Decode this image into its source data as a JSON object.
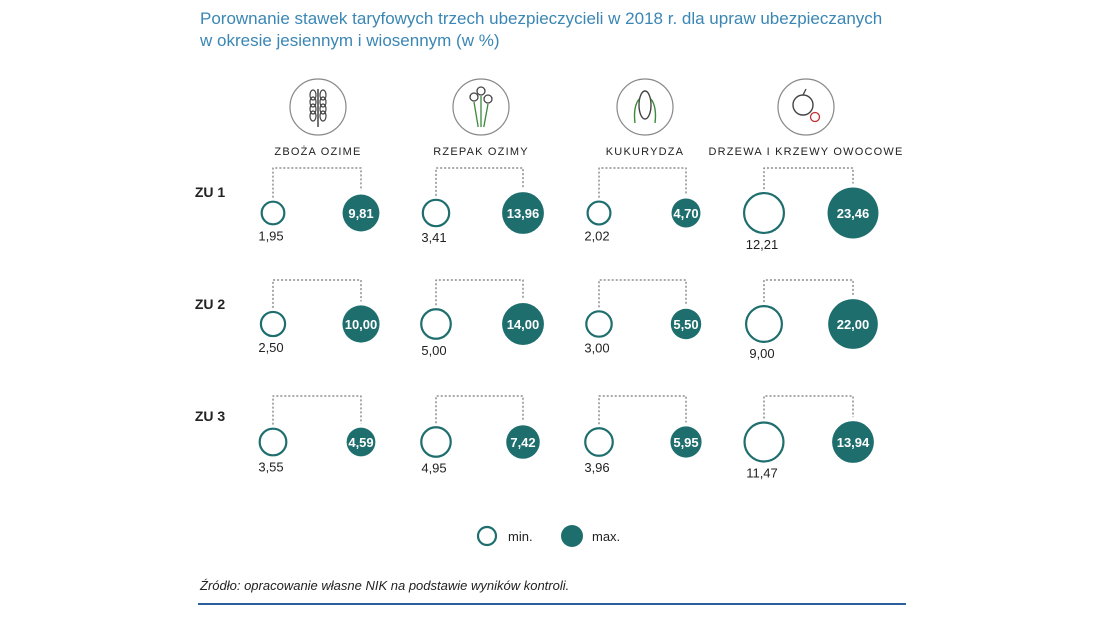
{
  "chart_data": {
    "type": "bubble-grid",
    "title_lines": [
      "Porownanie stawek taryfowych trzech ubezpieczycieli w 2018 r. dla upraw ubezpieczanych",
      "w okresie jesiennym i wiosennym (w %)"
    ],
    "categories": [
      {
        "label": "ZBOŻA OZIME",
        "icon": "wheat-icon"
      },
      {
        "label": "RZEPAK OZIMY",
        "icon": "rapeseed-icon"
      },
      {
        "label": "KUKURYDZA",
        "icon": "corn-icon"
      },
      {
        "label": "DRZEWA I KRZEWY OWOCOWE",
        "icon": "fruit-icon"
      }
    ],
    "insurers": [
      "ZU 1",
      "ZU 2",
      "ZU 3"
    ],
    "series": [
      {
        "name": "min.",
        "values": [
          [
            1.95,
            3.41,
            2.02,
            12.21
          ],
          [
            2.5,
            5.0,
            3.0,
            9.0
          ],
          [
            3.55,
            4.95,
            3.96,
            11.47
          ]
        ]
      },
      {
        "name": "max.",
        "values": [
          [
            9.81,
            13.96,
            4.7,
            23.46
          ],
          [
            10.0,
            14.0,
            5.5,
            22.0
          ],
          [
            4.59,
            7.42,
            5.95,
            13.94
          ]
        ]
      }
    ],
    "value_labels": {
      "min": [
        [
          "1,95",
          "3,41",
          "2,02",
          "12,21"
        ],
        [
          "2,50",
          "5,00",
          "3,00",
          "9,00"
        ],
        [
          "3,55",
          "4,95",
          "3,96",
          "11,47"
        ]
      ],
      "max": [
        [
          "9,81",
          "13,96",
          "4,70",
          "23,46"
        ],
        [
          "10,00",
          "14,00",
          "5,50",
          "22,00"
        ],
        [
          "4,59",
          "7,42",
          "5,95",
          "13,94"
        ]
      ]
    },
    "legend": {
      "min_label": "min.",
      "max_label": "max.",
      "position": "bottom-center"
    },
    "colors": {
      "accent": "#1f6e6e",
      "title": "#3a86b4",
      "source_rule": "#2a5f9e"
    }
  },
  "source": "Źródło: opracowanie własne NIK na podstawie wyników kontroli."
}
